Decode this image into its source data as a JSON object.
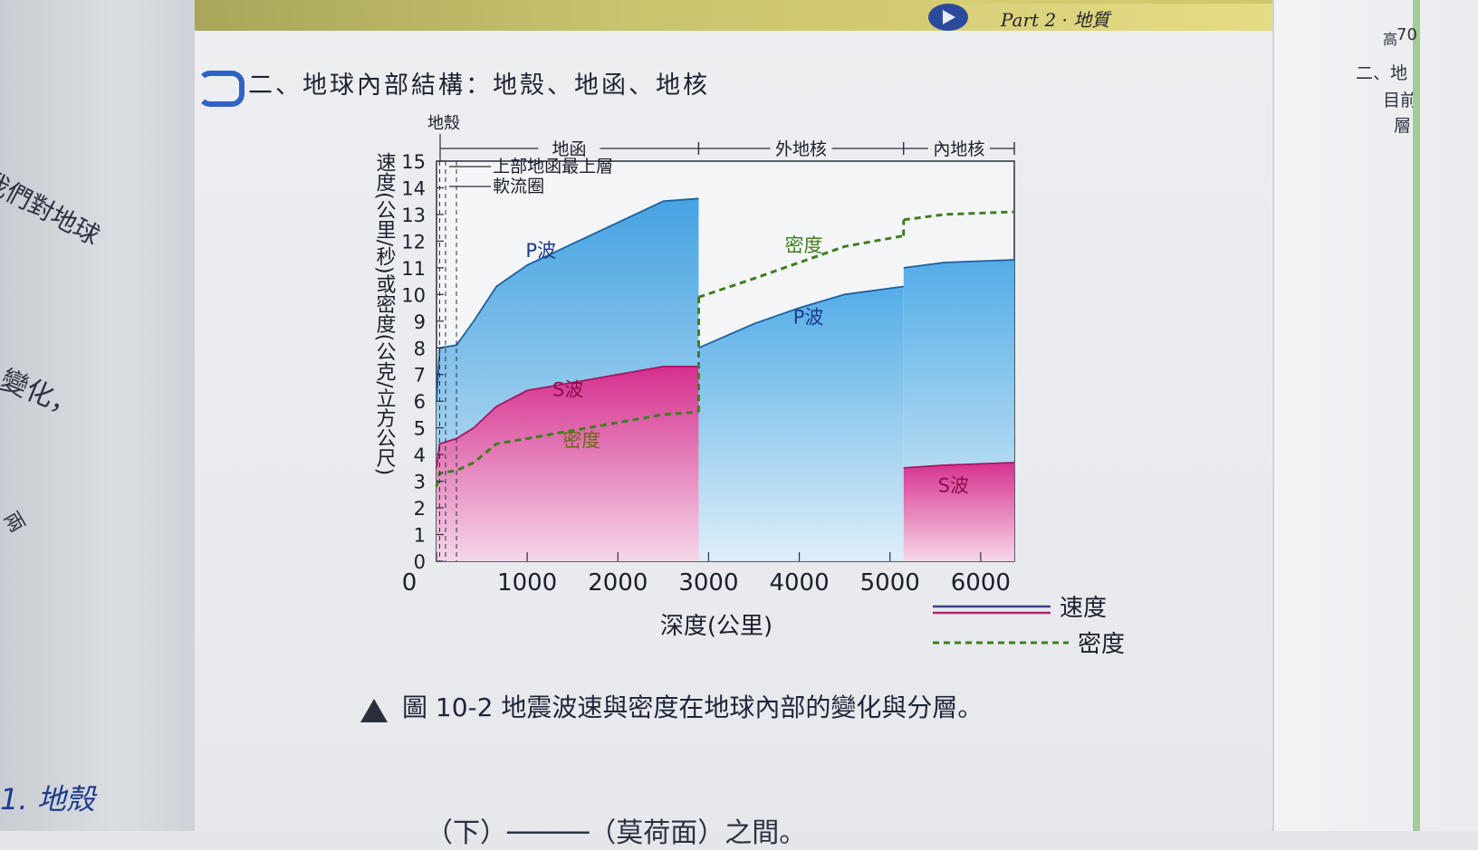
{
  "header": {
    "part_label": "Part 2 · 地質",
    "page_number": "70"
  },
  "section": {
    "title": "二、地球內部結構：地殼、地函、地核"
  },
  "left_page": {
    "line1": "我們對地球",
    "line2": "變化，",
    "line3": "兩",
    "heading": "1. 地殼"
  },
  "right_page": {
    "l1": "高",
    "l2": "二、地",
    "l3": "目前",
    "l4": "層"
  },
  "caption": {
    "text": "圖 10-2 地震波速與密度在地球內部的變化與分層。"
  },
  "bottom_line": "（下）─────（莫荷面）之間。",
  "chart_data": {
    "type": "area",
    "xlabel": "深度(公里)",
    "ylabel": "速度(公里/秒)或密度(公克/立方公尺)",
    "xlim": [
      0,
      6371
    ],
    "ylim": [
      0,
      15
    ],
    "x_ticks": [
      0,
      1000,
      2000,
      3000,
      4000,
      5000,
      6000
    ],
    "y_ticks": [
      0,
      1,
      2,
      3,
      4,
      5,
      6,
      7,
      8,
      9,
      10,
      11,
      12,
      13,
      14,
      15
    ],
    "layers": [
      {
        "name": "地殼",
        "from": 0,
        "to": 35
      },
      {
        "name": "地函",
        "from": 35,
        "to": 2890
      },
      {
        "name": "外地核",
        "from": 2890,
        "to": 5150
      },
      {
        "name": "內地核",
        "from": 5150,
        "to": 6371
      }
    ],
    "annotations": [
      "上部地函最上層",
      "軟流圈"
    ],
    "series": [
      {
        "name": "P波",
        "kind": "速度",
        "color": "#4aa6dd",
        "points": [
          [
            0,
            6.0
          ],
          [
            35,
            8.0
          ],
          [
            220,
            8.1
          ],
          [
            410,
            9.0
          ],
          [
            660,
            10.3
          ],
          [
            1000,
            11.1
          ],
          [
            1500,
            11.9
          ],
          [
            2000,
            12.7
          ],
          [
            2500,
            13.5
          ],
          [
            2890,
            13.6
          ],
          [
            2891,
            8.0
          ],
          [
            3500,
            8.9
          ],
          [
            4000,
            9.5
          ],
          [
            4500,
            10.0
          ],
          [
            5150,
            10.3
          ],
          [
            5151,
            11.0
          ],
          [
            5600,
            11.2
          ],
          [
            6371,
            11.3
          ]
        ]
      },
      {
        "name": "S波",
        "kind": "速度",
        "color": "#e0398e",
        "points": [
          [
            0,
            3.5
          ],
          [
            35,
            4.4
          ],
          [
            220,
            4.6
          ],
          [
            410,
            5.0
          ],
          [
            660,
            5.8
          ],
          [
            1000,
            6.4
          ],
          [
            1500,
            6.7
          ],
          [
            2000,
            7.0
          ],
          [
            2500,
            7.3
          ],
          [
            2890,
            7.3
          ],
          [
            2891,
            0
          ],
          [
            5150,
            0
          ],
          [
            5151,
            3.5
          ],
          [
            5600,
            3.6
          ],
          [
            6371,
            3.7
          ]
        ]
      },
      {
        "name": "密度",
        "kind": "密度",
        "color": "#3f7d1f",
        "points": [
          [
            0,
            2.8
          ],
          [
            35,
            3.3
          ],
          [
            220,
            3.4
          ],
          [
            410,
            3.7
          ],
          [
            660,
            4.4
          ],
          [
            1000,
            4.6
          ],
          [
            1500,
            4.9
          ],
          [
            2000,
            5.2
          ],
          [
            2500,
            5.5
          ],
          [
            2890,
            5.6
          ],
          [
            2891,
            9.9
          ],
          [
            3500,
            10.6
          ],
          [
            4000,
            11.2
          ],
          [
            4500,
            11.8
          ],
          [
            5150,
            12.2
          ],
          [
            5151,
            12.8
          ],
          [
            5600,
            13.0
          ],
          [
            6371,
            13.1
          ]
        ]
      }
    ],
    "legend": [
      {
        "label": "速度",
        "style": "solid"
      },
      {
        "label": "密度",
        "style": "dashed"
      }
    ]
  }
}
